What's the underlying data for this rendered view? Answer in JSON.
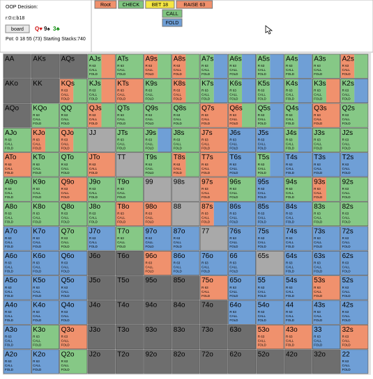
{
  "header": {
    "title": "OOP Decision:",
    "line": "r:0:c:b18",
    "board_button": "board",
    "cards": [
      {
        "text": "Q♥",
        "color": "#d01010"
      },
      {
        "text": "9♠",
        "color": "#111111"
      },
      {
        "text": "3♣",
        "color": "#0a8a0a"
      }
    ],
    "pot": "Pot: 0 18 55 (73) Starting Stacks:740"
  },
  "actions": [
    {
      "text": "Root",
      "color": "#f0906c"
    },
    {
      "text": "CHECK",
      "color": "#7fc47f"
    },
    {
      "text": "BET 18",
      "color": "#f5e642"
    },
    {
      "text": "RAISE 63",
      "color": "#f0906c"
    }
  ],
  "responses": [
    {
      "text": "CALL",
      "color": "#7fc47f"
    },
    {
      "text": "FOLD",
      "color": "#6f9fd6"
    }
  ],
  "cell_rows": [
    "R 63",
    "CALL",
    "FOLD"
  ],
  "palette": {
    "d": "#6e6e6e",
    "l": "#a9a9a9",
    "g": "#86c886",
    "r": "#f0916d",
    "b": "#6f9fd6"
  },
  "hands": [
    [
      "AA",
      "AKs",
      "AQs",
      "AJs",
      "ATs",
      "A9s",
      "A8s",
      "A7s",
      "A6s",
      "A5s",
      "A4s",
      "A3s",
      "A2s"
    ],
    [
      "AKo",
      "KK",
      "KQs",
      "KJs",
      "KTs",
      "K9s",
      "K8s",
      "K7s",
      "K6s",
      "K5s",
      "K4s",
      "K3s",
      "K2s"
    ],
    [
      "AQo",
      "KQo",
      "QQ",
      "QJs",
      "QTs",
      "Q9s",
      "Q8s",
      "Q7s",
      "Q6s",
      "Q5s",
      "Q4s",
      "Q3s",
      "Q2s"
    ],
    [
      "AJo",
      "KJo",
      "QJo",
      "JJ",
      "JTs",
      "J9s",
      "J8s",
      "J7s",
      "J6s",
      "J5s",
      "J4s",
      "J3s",
      "J2s"
    ],
    [
      "ATo",
      "KTo",
      "QTo",
      "JTo",
      "TT",
      "T9s",
      "T8s",
      "T7s",
      "T6s",
      "T5s",
      "T4s",
      "T3s",
      "T2s"
    ],
    [
      "A9o",
      "K9o",
      "Q9o",
      "J9o",
      "T9o",
      "99",
      "98s",
      "97s",
      "96s",
      "95s",
      "94s",
      "93s",
      "92s"
    ],
    [
      "A8o",
      "K8o",
      "Q8o",
      "J8o",
      "T8o",
      "98o",
      "88",
      "87s",
      "86s",
      "85s",
      "84s",
      "83s",
      "82s"
    ],
    [
      "A7o",
      "K7o",
      "Q7o",
      "J7o",
      "T7o",
      "97o",
      "87o",
      "77",
      "76s",
      "75s",
      "74s",
      "73s",
      "72s"
    ],
    [
      "A6o",
      "K6o",
      "Q6o",
      "J6o",
      "T6o",
      "96o",
      "86o",
      "76o",
      "66",
      "65s",
      "64s",
      "63s",
      "62s"
    ],
    [
      "A5o",
      "K5o",
      "Q5o",
      "J5o",
      "T5o",
      "95o",
      "85o",
      "75o",
      "65o",
      "55",
      "54s",
      "53s",
      "52s"
    ],
    [
      "A4o",
      "K4o",
      "Q4o",
      "J4o",
      "T4o",
      "94o",
      "84o",
      "74o",
      "64o",
      "54o",
      "44",
      "43s",
      "42s"
    ],
    [
      "A3o",
      "K3o",
      "Q3o",
      "J3o",
      "T3o",
      "93o",
      "83o",
      "73o",
      "63o",
      "53o",
      "43o",
      "33",
      "32s"
    ],
    [
      "A2o",
      "K2o",
      "Q2o",
      "J2o",
      "T2o",
      "92o",
      "82o",
      "72o",
      "62o",
      "52o",
      "42o",
      "32o",
      "22"
    ]
  ],
  "fills": [
    [
      "d",
      "d",
      "d",
      "gr",
      "g",
      "rg",
      "rg",
      "gb",
      "gb",
      "gb",
      "gb",
      "g",
      "rg"
    ],
    [
      "d",
      "d",
      "rg",
      "gr",
      "r",
      "g",
      "rg",
      "gb",
      "gb",
      "gb",
      "gb",
      "gr",
      "gb"
    ],
    [
      "d",
      "g",
      "g",
      "rg",
      "g",
      "g",
      "g",
      "r",
      "rg",
      "gb",
      "gb",
      "r",
      "g"
    ],
    [
      "g",
      "rg",
      "rg",
      "l",
      "g",
      "gb",
      "g",
      "r",
      "b",
      "b",
      "gb",
      "g",
      "g"
    ],
    [
      "r",
      "g",
      "g",
      "r",
      "l",
      "g",
      "rg",
      "r",
      "b",
      "gb",
      "b",
      "b",
      "b"
    ],
    [
      "g",
      "g",
      "r",
      "g",
      "g",
      "l",
      "l",
      "r",
      "g",
      "b",
      "g",
      "rg",
      "g"
    ],
    [
      "g",
      "g",
      "g",
      "g",
      "r",
      "r",
      "l",
      "rb",
      "b",
      "b",
      "b",
      "g",
      "g"
    ],
    [
      "b",
      "b",
      "g",
      "b",
      "g",
      "b",
      "b",
      "l",
      "b",
      "b",
      "b",
      "b",
      "b"
    ],
    [
      "b",
      "b",
      "b",
      "d",
      "d",
      "r",
      "b",
      "b",
      "b",
      "l",
      "b",
      "b",
      "b"
    ],
    [
      "b",
      "b",
      "b",
      "d",
      "d",
      "d",
      "d",
      "r",
      "b",
      "b",
      "b",
      "r",
      "b"
    ],
    [
      "b",
      "b",
      "b",
      "d",
      "d",
      "d",
      "d",
      "d",
      "b",
      "b",
      "b",
      "b",
      "b"
    ],
    [
      "b",
      "g",
      "r",
      "d",
      "d",
      "d",
      "d",
      "d",
      "d",
      "r",
      "r",
      "b",
      "r"
    ],
    [
      "b",
      "b",
      "g",
      "d",
      "d",
      "d",
      "d",
      "d",
      "d",
      "d",
      "d",
      "d",
      "b"
    ]
  ]
}
